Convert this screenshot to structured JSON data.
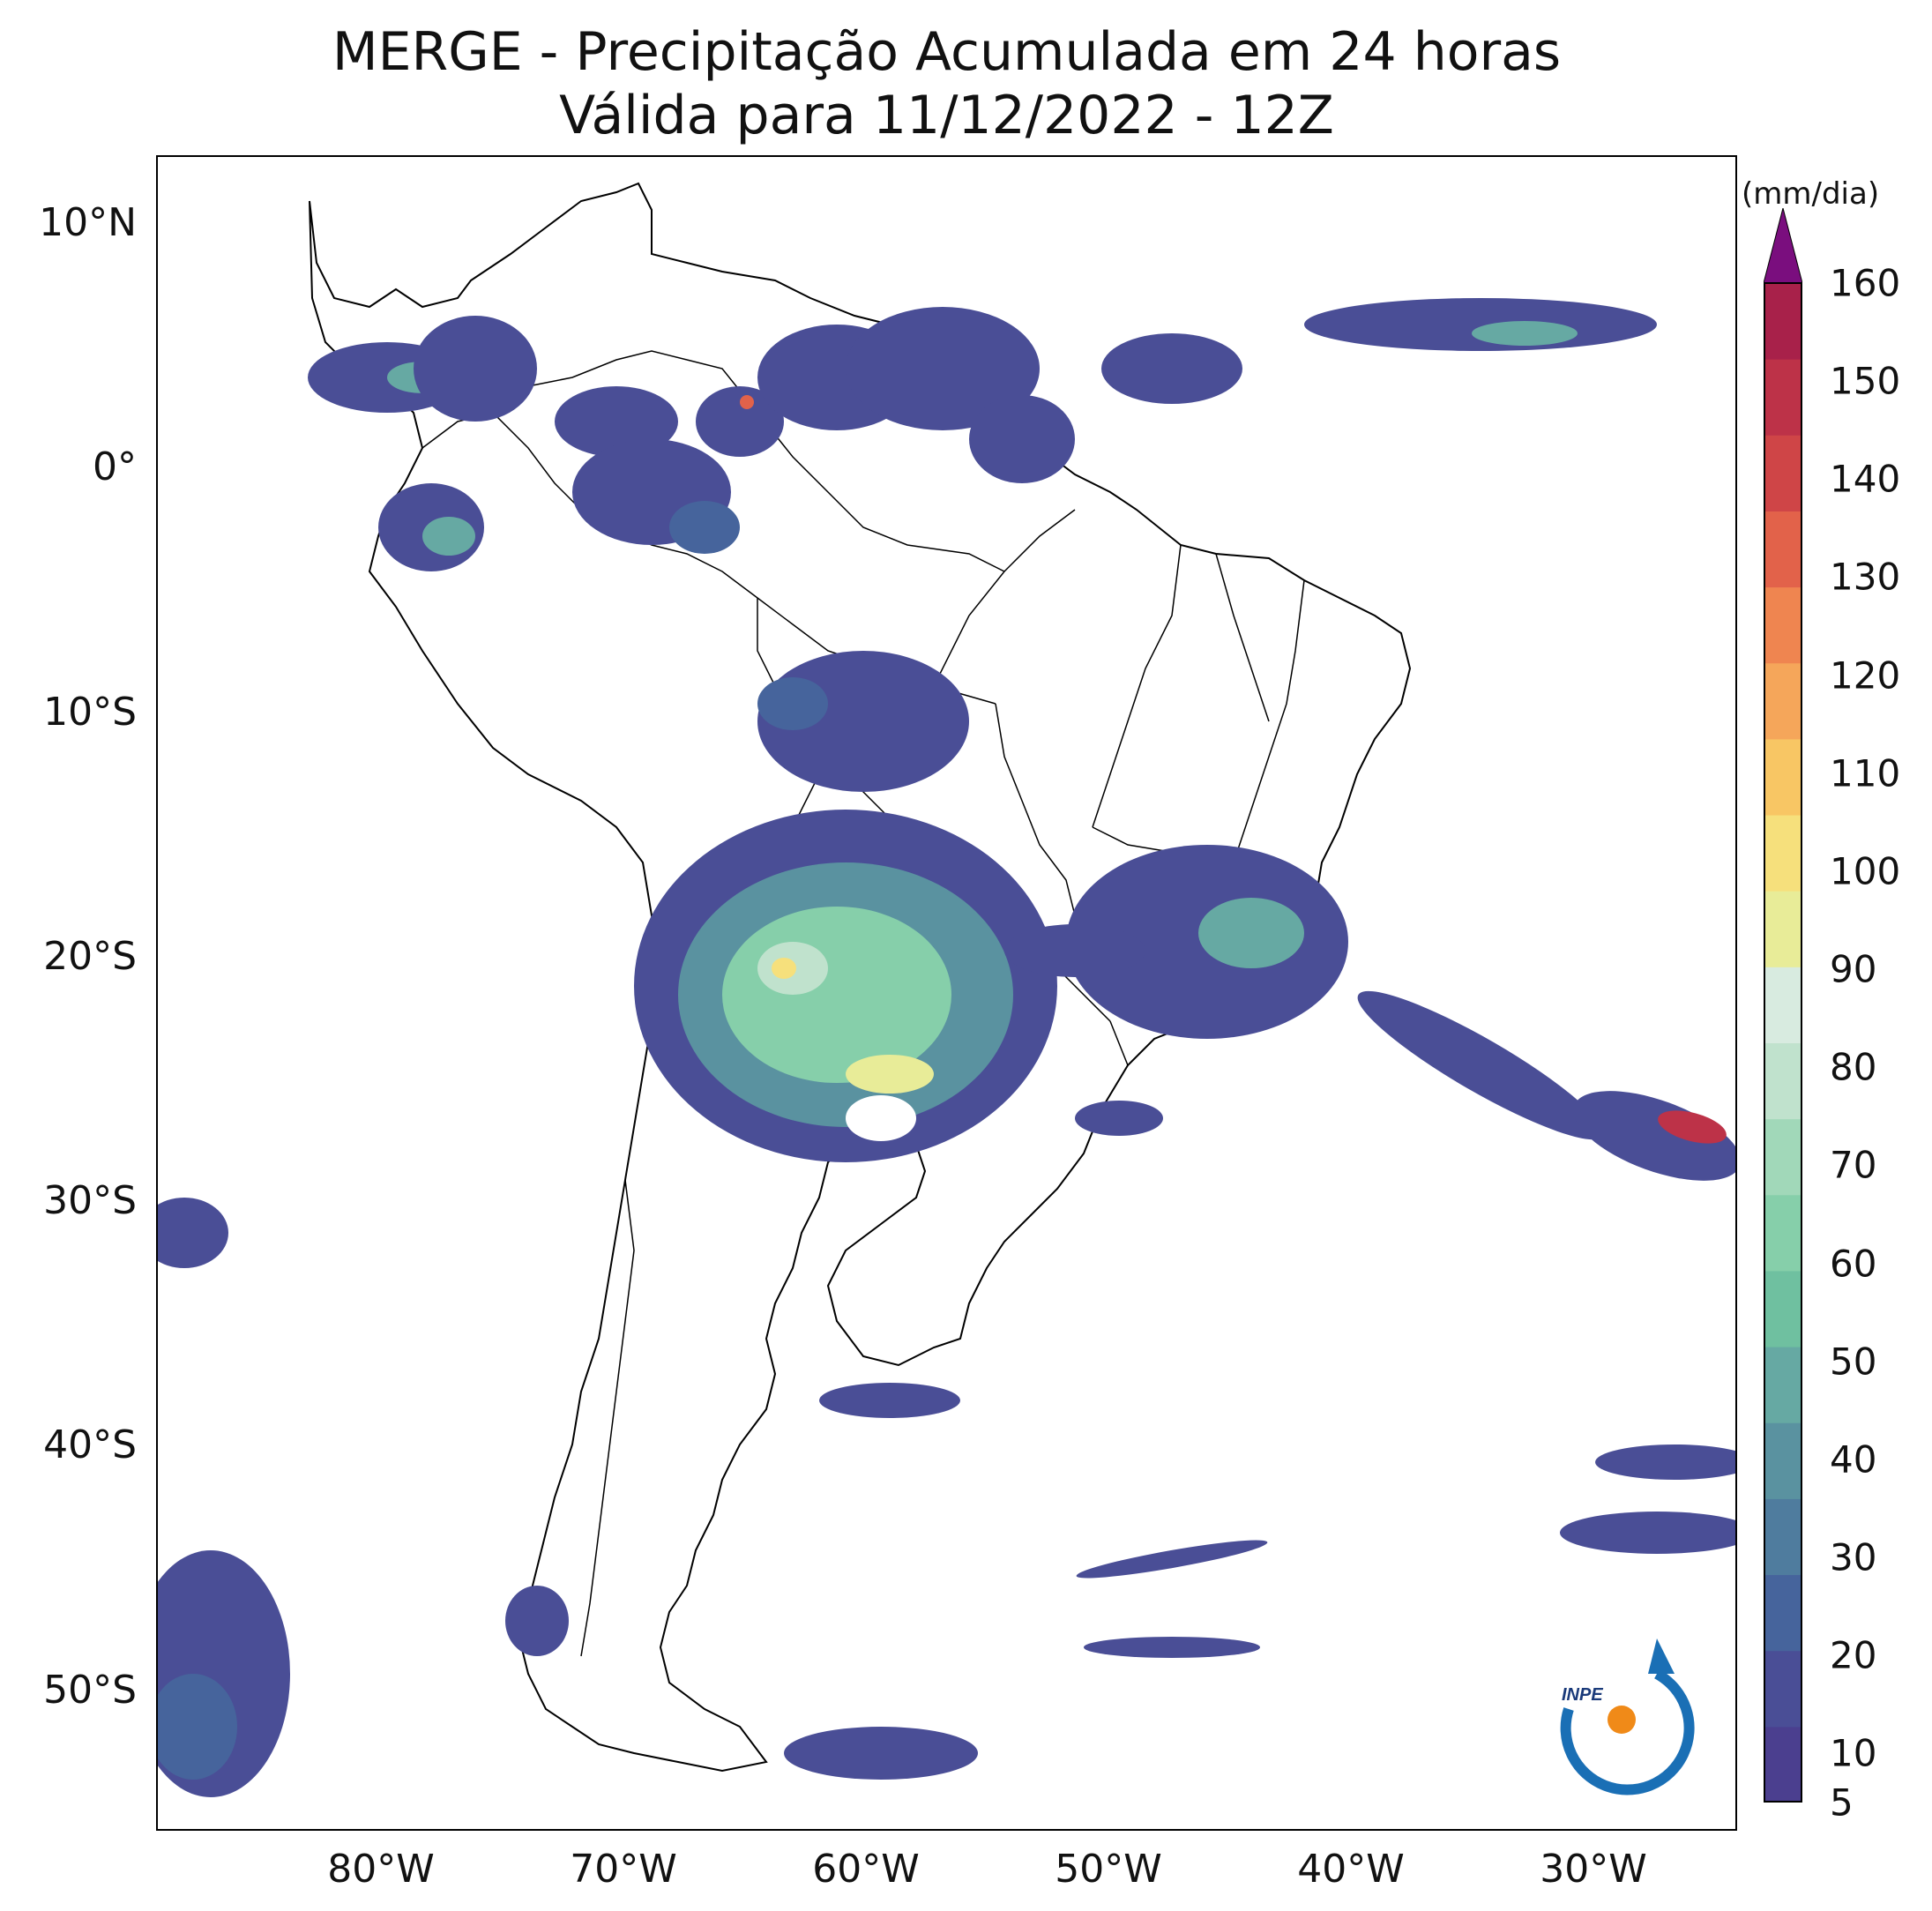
{
  "title_line1": "MERGE - Precipitação Acumulada em 24 horas",
  "title_line2": "Válida para 11/12/2022 - 12Z",
  "lat_labels": [
    "10°N",
    "0°",
    "10°S",
    "20°S",
    "30°S",
    "40°S",
    "50°S"
  ],
  "lon_labels": [
    "80°W",
    "70°W",
    "60°W",
    "50°W",
    "40°W",
    "30°W"
  ],
  "colorbar": {
    "unit": "(mm/dia)",
    "ticks": [
      "160",
      "150",
      "140",
      "130",
      "120",
      "110",
      "100",
      "90",
      "80",
      "70",
      "60",
      "50",
      "40",
      "30",
      "20",
      "10",
      "5"
    ],
    "colors": [
      "#4b3f8f",
      "#4a4e96",
      "#46649c",
      "#4f7c9e",
      "#5a92a0",
      "#66a9a3",
      "#6fc0a0",
      "#86cfaa",
      "#a1d8b9",
      "#c0e2cd",
      "#d8ebe0",
      "#e8ec98",
      "#f6e07c",
      "#f8c664",
      "#f5a65a",
      "#ef8550",
      "#e2624a",
      "#cf4547",
      "#bd3248",
      "#a8214a"
    ],
    "extend_color": "#7a0e7e"
  },
  "logo_text": "INPE"
}
